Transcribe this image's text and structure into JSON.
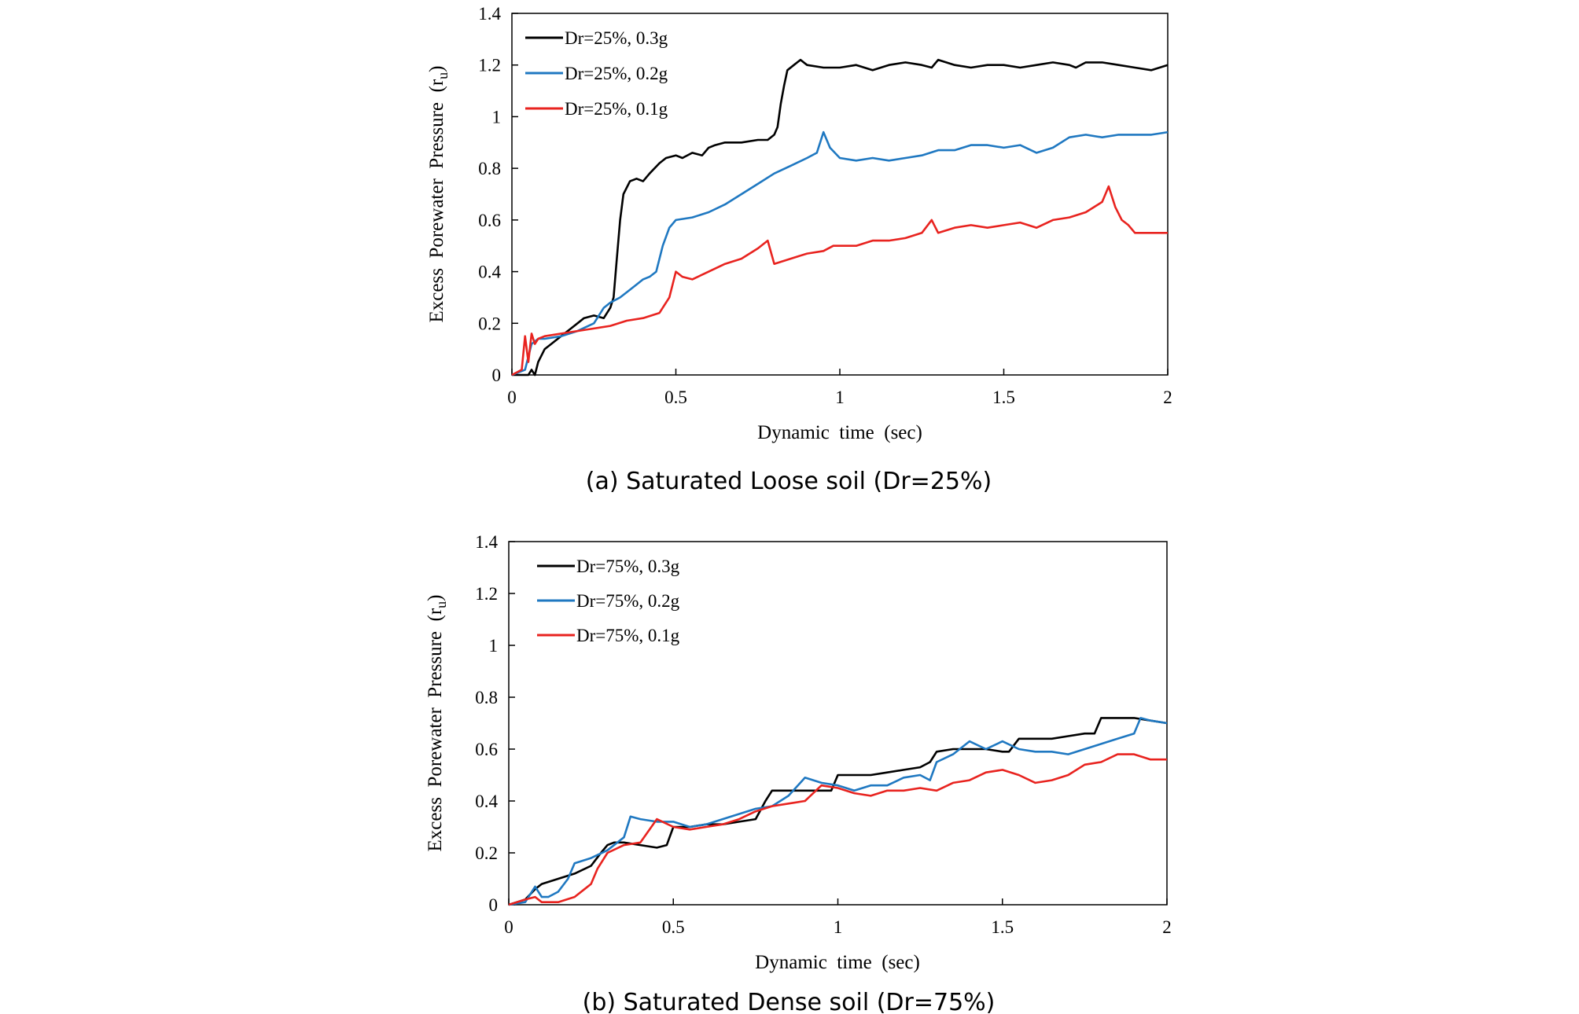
{
  "chart_data": [
    {
      "type": "line",
      "caption": "(a) Saturated Loose soil (Dr=25%)",
      "xlabel": "Dynamic  time  (sec)",
      "ylabel": "Excess  Porewater  Pressure  (r",
      "ylabel_sub": "u",
      "ylabel_close": ")",
      "xlim": [
        0,
        2
      ],
      "ylim": [
        0,
        1.4
      ],
      "xticks": [
        0,
        0.5,
        1,
        1.5,
        2
      ],
      "xtick_labels": [
        "0",
        "0.5",
        "1",
        "1.5",
        "2"
      ],
      "yticks": [
        0,
        0.2,
        0.4,
        0.6,
        0.8,
        1,
        1.2,
        1.4
      ],
      "ytick_labels": [
        "0",
        "0.2",
        "0.4",
        "0.6",
        "0.8",
        "1",
        "1.2",
        "1.4"
      ],
      "grid": false,
      "legend_position": "top-left",
      "series": [
        {
          "name": "Dr=25%, 0.3g",
          "color": "#000000",
          "x": [
            0,
            0.05,
            0.06,
            0.07,
            0.08,
            0.1,
            0.12,
            0.15,
            0.18,
            0.2,
            0.22,
            0.25,
            0.28,
            0.3,
            0.31,
            0.32,
            0.33,
            0.34,
            0.36,
            0.38,
            0.4,
            0.42,
            0.45,
            0.47,
            0.5,
            0.52,
            0.55,
            0.58,
            0.6,
            0.62,
            0.65,
            0.7,
            0.75,
            0.78,
            0.8,
            0.81,
            0.82,
            0.83,
            0.84,
            0.86,
            0.88,
            0.9,
            0.95,
            1.0,
            1.05,
            1.1,
            1.15,
            1.2,
            1.25,
            1.28,
            1.3,
            1.35,
            1.4,
            1.45,
            1.5,
            1.55,
            1.6,
            1.65,
            1.7,
            1.72,
            1.75,
            1.8,
            1.85,
            1.9,
            1.95,
            2.0
          ],
          "y": [
            0,
            0,
            0.02,
            0.0,
            0.05,
            0.1,
            0.12,
            0.15,
            0.18,
            0.2,
            0.22,
            0.23,
            0.22,
            0.26,
            0.3,
            0.45,
            0.6,
            0.7,
            0.75,
            0.76,
            0.75,
            0.78,
            0.82,
            0.84,
            0.85,
            0.84,
            0.86,
            0.85,
            0.88,
            0.89,
            0.9,
            0.9,
            0.91,
            0.91,
            0.93,
            0.96,
            1.05,
            1.12,
            1.18,
            1.2,
            1.22,
            1.2,
            1.19,
            1.19,
            1.2,
            1.18,
            1.2,
            1.21,
            1.2,
            1.19,
            1.22,
            1.2,
            1.19,
            1.2,
            1.2,
            1.19,
            1.2,
            1.21,
            1.2,
            1.19,
            1.21,
            1.21,
            1.2,
            1.19,
            1.18,
            1.2
          ]
        },
        {
          "name": "Dr=25%, 0.2g",
          "color": "#1f78c1",
          "x": [
            0,
            0.04,
            0.06,
            0.08,
            0.1,
            0.15,
            0.2,
            0.25,
            0.28,
            0.3,
            0.33,
            0.36,
            0.38,
            0.4,
            0.42,
            0.44,
            0.46,
            0.48,
            0.5,
            0.55,
            0.6,
            0.65,
            0.7,
            0.75,
            0.8,
            0.85,
            0.9,
            0.93,
            0.95,
            0.97,
            1.0,
            1.05,
            1.1,
            1.15,
            1.2,
            1.25,
            1.3,
            1.35,
            1.4,
            1.45,
            1.5,
            1.55,
            1.6,
            1.65,
            1.7,
            1.75,
            1.8,
            1.85,
            1.9,
            1.95,
            2.0
          ],
          "y": [
            0,
            0.02,
            0.12,
            0.14,
            0.14,
            0.15,
            0.17,
            0.2,
            0.26,
            0.28,
            0.3,
            0.33,
            0.35,
            0.37,
            0.38,
            0.4,
            0.5,
            0.57,
            0.6,
            0.61,
            0.63,
            0.66,
            0.7,
            0.74,
            0.78,
            0.81,
            0.84,
            0.86,
            0.94,
            0.88,
            0.84,
            0.83,
            0.84,
            0.83,
            0.84,
            0.85,
            0.87,
            0.87,
            0.89,
            0.89,
            0.88,
            0.89,
            0.86,
            0.88,
            0.92,
            0.93,
            0.92,
            0.93,
            0.93,
            0.93,
            0.94
          ]
        },
        {
          "name": "Dr=25%, 0.1g",
          "color": "#e8231f",
          "x": [
            0,
            0.03,
            0.04,
            0.05,
            0.06,
            0.07,
            0.08,
            0.1,
            0.15,
            0.2,
            0.25,
            0.3,
            0.35,
            0.4,
            0.45,
            0.48,
            0.5,
            0.52,
            0.55,
            0.6,
            0.65,
            0.7,
            0.75,
            0.78,
            0.8,
            0.85,
            0.9,
            0.95,
            0.98,
            1.0,
            1.05,
            1.1,
            1.15,
            1.2,
            1.25,
            1.28,
            1.3,
            1.35,
            1.4,
            1.45,
            1.5,
            1.55,
            1.6,
            1.65,
            1.7,
            1.75,
            1.8,
            1.82,
            1.84,
            1.86,
            1.88,
            1.9,
            1.95,
            2.0
          ],
          "y": [
            0,
            0.02,
            0.15,
            0.05,
            0.16,
            0.12,
            0.14,
            0.15,
            0.16,
            0.17,
            0.18,
            0.19,
            0.21,
            0.22,
            0.24,
            0.3,
            0.4,
            0.38,
            0.37,
            0.4,
            0.43,
            0.45,
            0.49,
            0.52,
            0.43,
            0.45,
            0.47,
            0.48,
            0.5,
            0.5,
            0.5,
            0.52,
            0.52,
            0.53,
            0.55,
            0.6,
            0.55,
            0.57,
            0.58,
            0.57,
            0.58,
            0.59,
            0.57,
            0.6,
            0.61,
            0.63,
            0.67,
            0.73,
            0.65,
            0.6,
            0.58,
            0.55,
            0.55,
            0.55
          ]
        }
      ]
    },
    {
      "type": "line",
      "caption": "(b) Saturated Dense soil (Dr=75%)",
      "xlabel": "Dynamic  time  (sec)",
      "ylabel": "Excess  Porewater  Pressure  (r",
      "ylabel_sub": "u",
      "ylabel_close": ")",
      "xlim": [
        0,
        2
      ],
      "ylim": [
        0,
        1.4
      ],
      "xticks": [
        0,
        0.5,
        1,
        1.5,
        2
      ],
      "xtick_labels": [
        "0",
        "0.5",
        "1",
        "1.5",
        "2"
      ],
      "yticks": [
        0,
        0.2,
        0.4,
        0.6,
        0.8,
        1,
        1.2,
        1.4
      ],
      "ytick_labels": [
        "0",
        "0.2",
        "0.4",
        "0.6",
        "0.8",
        "1",
        "1.2",
        "1.4"
      ],
      "grid": false,
      "legend_position": "top-left",
      "series": [
        {
          "name": "Dr=75%, 0.3g",
          "color": "#000000",
          "x": [
            0,
            0.05,
            0.08,
            0.1,
            0.15,
            0.2,
            0.25,
            0.28,
            0.3,
            0.32,
            0.35,
            0.4,
            0.45,
            0.48,
            0.5,
            0.55,
            0.6,
            0.65,
            0.7,
            0.75,
            0.78,
            0.8,
            0.85,
            0.9,
            0.95,
            0.98,
            1.0,
            1.05,
            1.1,
            1.15,
            1.2,
            1.25,
            1.28,
            1.3,
            1.35,
            1.4,
            1.45,
            1.5,
            1.52,
            1.55,
            1.6,
            1.65,
            1.7,
            1.75,
            1.78,
            1.8,
            1.85,
            1.9,
            1.95,
            2.0
          ],
          "y": [
            0,
            0.02,
            0.06,
            0.08,
            0.1,
            0.12,
            0.15,
            0.2,
            0.23,
            0.24,
            0.24,
            0.23,
            0.22,
            0.23,
            0.3,
            0.3,
            0.31,
            0.31,
            0.32,
            0.33,
            0.4,
            0.44,
            0.44,
            0.44,
            0.44,
            0.44,
            0.5,
            0.5,
            0.5,
            0.51,
            0.52,
            0.53,
            0.55,
            0.59,
            0.6,
            0.6,
            0.6,
            0.59,
            0.59,
            0.64,
            0.64,
            0.64,
            0.65,
            0.66,
            0.66,
            0.72,
            0.72,
            0.72,
            0.71,
            0.7
          ]
        },
        {
          "name": "Dr=75%, 0.2g",
          "color": "#1f78c1",
          "x": [
            0,
            0.05,
            0.08,
            0.1,
            0.12,
            0.15,
            0.18,
            0.2,
            0.25,
            0.3,
            0.35,
            0.37,
            0.4,
            0.45,
            0.5,
            0.55,
            0.6,
            0.65,
            0.7,
            0.75,
            0.8,
            0.85,
            0.9,
            0.95,
            1.0,
            1.05,
            1.1,
            1.15,
            1.2,
            1.25,
            1.28,
            1.3,
            1.35,
            1.4,
            1.45,
            1.5,
            1.55,
            1.6,
            1.65,
            1.7,
            1.75,
            1.8,
            1.85,
            1.9,
            1.92,
            1.95,
            2.0
          ],
          "y": [
            0,
            0.01,
            0.07,
            0.03,
            0.03,
            0.05,
            0.1,
            0.16,
            0.18,
            0.21,
            0.26,
            0.34,
            0.33,
            0.32,
            0.32,
            0.3,
            0.31,
            0.33,
            0.35,
            0.37,
            0.38,
            0.42,
            0.49,
            0.47,
            0.46,
            0.44,
            0.46,
            0.46,
            0.49,
            0.5,
            0.48,
            0.55,
            0.58,
            0.63,
            0.6,
            0.63,
            0.6,
            0.59,
            0.59,
            0.58,
            0.6,
            0.62,
            0.64,
            0.66,
            0.72,
            0.71,
            0.7
          ]
        },
        {
          "name": "Dr=75%, 0.1g",
          "color": "#e8231f",
          "x": [
            0,
            0.05,
            0.08,
            0.1,
            0.15,
            0.2,
            0.23,
            0.25,
            0.27,
            0.3,
            0.35,
            0.4,
            0.45,
            0.5,
            0.55,
            0.6,
            0.65,
            0.7,
            0.75,
            0.8,
            0.85,
            0.9,
            0.95,
            1.0,
            1.05,
            1.1,
            1.15,
            1.2,
            1.25,
            1.3,
            1.35,
            1.4,
            1.45,
            1.5,
            1.55,
            1.6,
            1.65,
            1.7,
            1.75,
            1.8,
            1.85,
            1.9,
            1.95,
            2.0
          ],
          "y": [
            0,
            0.02,
            0.03,
            0.01,
            0.01,
            0.03,
            0.06,
            0.08,
            0.14,
            0.2,
            0.23,
            0.24,
            0.33,
            0.3,
            0.29,
            0.3,
            0.31,
            0.33,
            0.36,
            0.38,
            0.39,
            0.4,
            0.46,
            0.45,
            0.43,
            0.42,
            0.44,
            0.44,
            0.45,
            0.44,
            0.47,
            0.48,
            0.51,
            0.52,
            0.5,
            0.47,
            0.48,
            0.5,
            0.54,
            0.55,
            0.58,
            0.58,
            0.56,
            0.56
          ]
        }
      ]
    }
  ]
}
